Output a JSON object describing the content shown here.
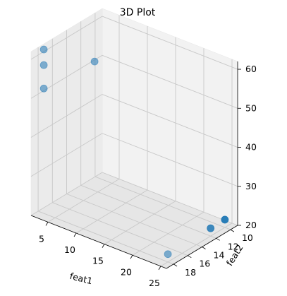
{
  "chart_data": {
    "type": "scatter",
    "projection": "3d",
    "title": "3D Plot",
    "xlabel": "feat1",
    "ylabel": "feat2",
    "zlabel": "",
    "xlim": [
      2,
      26
    ],
    "ylim": [
      9,
      19
    ],
    "zlim": [
      20,
      62
    ],
    "xticks": [
      5,
      10,
      15,
      20,
      25
    ],
    "yticks": [
      10,
      12,
      14,
      16,
      18
    ],
    "zticks": [
      20,
      30,
      40,
      50,
      60
    ],
    "grid": true,
    "marker_color": "#1f77b4",
    "points": [
      {
        "x": 3,
        "y": 18,
        "z": 62
      },
      {
        "x": 3,
        "y": 18,
        "z": 58
      },
      {
        "x": 3,
        "y": 18,
        "z": 52
      },
      {
        "x": 12,
        "y": 18,
        "z": 64
      },
      {
        "x": 25,
        "y": 10,
        "z": 22
      },
      {
        "x": 25,
        "y": 12,
        "z": 22
      },
      {
        "x": 25,
        "y": 18,
        "z": 22
      }
    ]
  }
}
